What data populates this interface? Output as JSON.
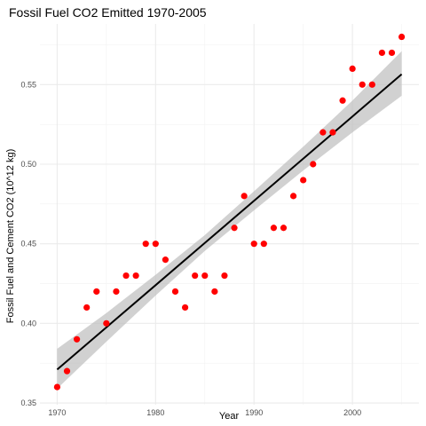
{
  "chart_data": {
    "type": "scatter",
    "title": "Fossil Fuel CO2 Emitted 1970-2005",
    "xlabel": "Year",
    "ylabel": "Fossil Fuel and Cement CO2 (10^12 kg)",
    "xlim": [
      1968.25,
      2006.75
    ],
    "ylim": [
      0.3489,
      0.5881
    ],
    "x_ticks": [
      1970,
      1980,
      1990,
      2000
    ],
    "x_tick_labels": [
      "1970",
      "1980",
      "1990",
      "2000"
    ],
    "y_ticks": [
      0.35,
      0.4,
      0.45,
      0.5,
      0.55
    ],
    "y_tick_labels": [
      "0.35",
      "0.40",
      "0.45",
      "0.50",
      "0.55"
    ],
    "grid": true,
    "legend": "none",
    "point_color": "#ff0000",
    "x": [
      1970,
      1971,
      1972,
      1973,
      1974,
      1975,
      1976,
      1977,
      1978,
      1979,
      1980,
      1981,
      1982,
      1983,
      1984,
      1985,
      1986,
      1987,
      1988,
      1989,
      1990,
      1991,
      1992,
      1993,
      1994,
      1995,
      1996,
      1997,
      1998,
      1999,
      2000,
      2001,
      2002,
      2003,
      2004,
      2005
    ],
    "y": [
      0.36,
      0.37,
      0.39,
      0.41,
      0.42,
      0.4,
      0.42,
      0.43,
      0.43,
      0.45,
      0.45,
      0.44,
      0.42,
      0.41,
      0.43,
      0.43,
      0.42,
      0.43,
      0.46,
      0.48,
      0.45,
      0.45,
      0.46,
      0.46,
      0.48,
      0.49,
      0.5,
      0.52,
      0.52,
      0.54,
      0.56,
      0.55,
      0.55,
      0.57,
      0.57,
      0.58
    ],
    "fit": {
      "type": "linear",
      "color": "#000000",
      "band_color": "#bebebe",
      "x": [
        1970,
        1975,
        1980,
        1985,
        1990,
        1995,
        2000,
        2005
      ],
      "y": [
        0.371,
        0.3975,
        0.424,
        0.4505,
        0.477,
        0.5035,
        0.53,
        0.5565
      ],
      "lower": [
        0.359,
        0.3885,
        0.4175,
        0.4455,
        0.471,
        0.496,
        0.52,
        0.543
      ],
      "upper": [
        0.384,
        0.4065,
        0.4305,
        0.4555,
        0.483,
        0.511,
        0.54,
        0.571
      ]
    }
  }
}
